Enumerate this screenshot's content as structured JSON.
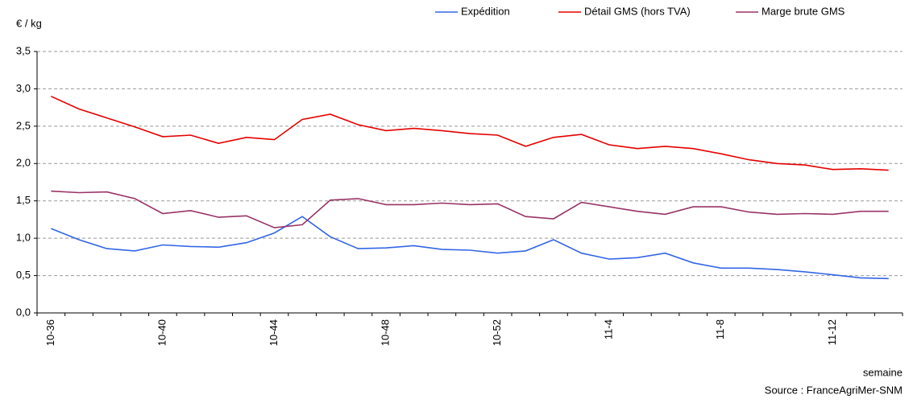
{
  "chart_data": {
    "type": "line",
    "y_label": "€ / kg",
    "x_label": "semaine",
    "source": "Source : FranceAgriMer-SNM",
    "categories": [
      "10-36",
      null,
      null,
      null,
      "10-40",
      null,
      null,
      null,
      "10-44",
      null,
      null,
      null,
      "10-48",
      null,
      null,
      null,
      "10-52",
      null,
      null,
      null,
      "11-4",
      null,
      null,
      null,
      "11-8",
      null,
      null,
      null,
      "11-12",
      null,
      null
    ],
    "series": [
      {
        "name": "Expédition",
        "color": "#3366e6",
        "values": [
          1.13,
          0.98,
          0.86,
          0.83,
          0.91,
          0.89,
          0.88,
          0.94,
          1.07,
          1.29,
          1.02,
          0.86,
          0.87,
          0.9,
          0.85,
          0.84,
          0.8,
          0.83,
          0.98,
          0.8,
          0.72,
          0.74,
          0.8,
          0.67,
          0.6,
          0.6,
          0.58,
          0.55,
          0.51,
          0.47,
          0.46
        ]
      },
      {
        "name": "Détail GMS (hors TVA)",
        "color": "#e60000",
        "values": [
          2.9,
          2.73,
          2.61,
          2.49,
          2.36,
          2.38,
          2.27,
          2.35,
          2.32,
          2.59,
          2.66,
          2.52,
          2.44,
          2.47,
          2.44,
          2.4,
          2.38,
          2.23,
          2.35,
          2.39,
          2.25,
          2.2,
          2.23,
          2.2,
          2.13,
          2.05,
          2.0,
          1.98,
          1.92,
          1.93,
          1.91
        ]
      },
      {
        "name": "Marge brute GMS",
        "color": "#993366",
        "values": [
          1.63,
          1.61,
          1.62,
          1.53,
          1.33,
          1.37,
          1.28,
          1.3,
          1.14,
          1.18,
          1.51,
          1.53,
          1.45,
          1.45,
          1.47,
          1.45,
          1.46,
          1.29,
          1.26,
          1.48,
          1.42,
          1.36,
          1.32,
          1.42,
          1.42,
          1.35,
          1.32,
          1.33,
          1.32,
          1.36,
          1.36
        ]
      }
    ],
    "ylim": [
      0,
      3.5
    ],
    "yticks": [
      {
        "value": 0,
        "label": "0,0"
      },
      {
        "value": 0.5,
        "label": "0,5"
      },
      {
        "value": 1,
        "label": "1,0"
      },
      {
        "value": 1.5,
        "label": "1,5"
      },
      {
        "value": 2,
        "label": "2,0"
      },
      {
        "value": 2.5,
        "label": "2,5"
      },
      {
        "value": 3,
        "label": "3,0"
      },
      {
        "value": 3.5,
        "label": "3,5"
      }
    ],
    "grid": true
  }
}
